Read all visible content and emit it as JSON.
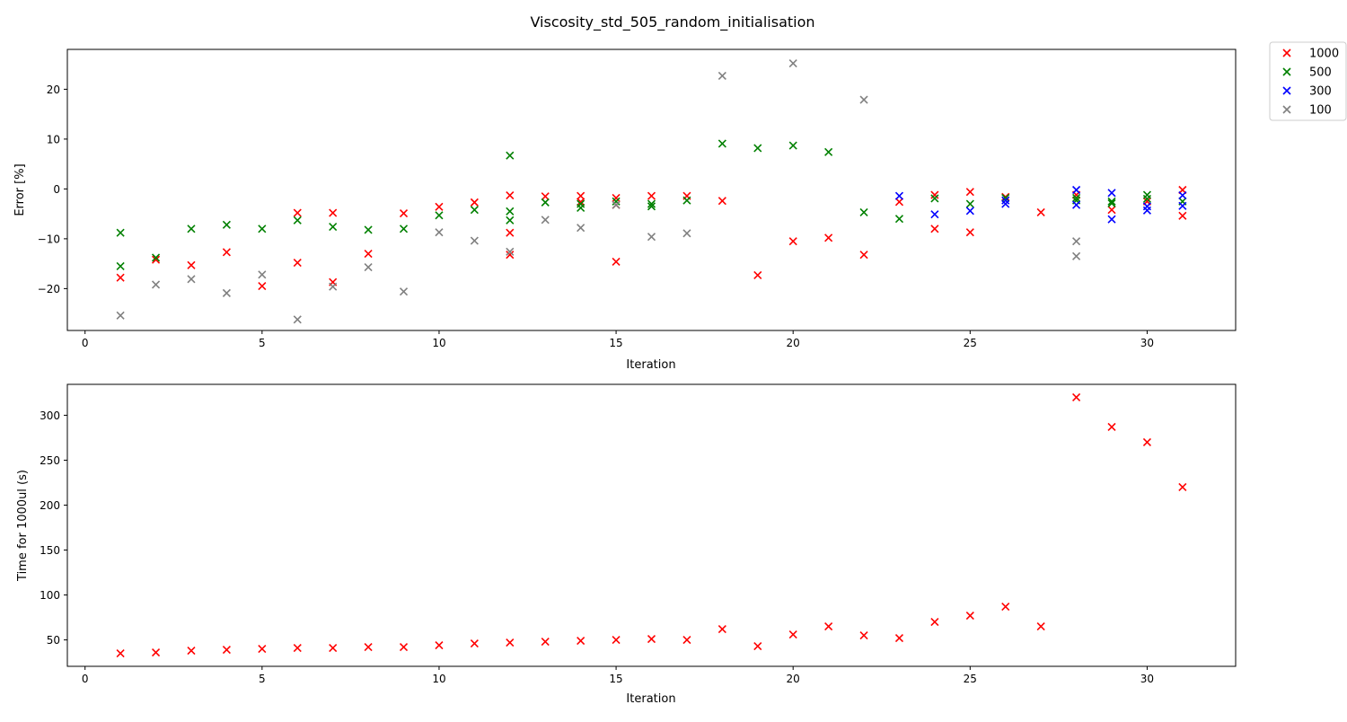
{
  "figure": {
    "title": "Viscosity_std_505_random_initialisation"
  },
  "chart_data": [
    {
      "type": "scatter",
      "title": "",
      "xlabel": "Iteration",
      "ylabel": "Error [%]",
      "xlim": [
        -0.5,
        32.5
      ],
      "ylim": [
        -28.4,
        28.0
      ],
      "xticks": [
        0,
        5,
        10,
        15,
        20,
        25,
        30
      ],
      "yticks": [
        -20,
        -10,
        0,
        10,
        20
      ],
      "grid": false,
      "legend": "outside-top-right",
      "series": [
        {
          "name": "1000",
          "color": "#ff0000",
          "marker": "x",
          "points": [
            [
              1,
              -17.8
            ],
            [
              2,
              -14.2
            ],
            [
              3,
              -15.3
            ],
            [
              4,
              -12.7
            ],
            [
              5,
              -19.5
            ],
            [
              6,
              -4.8
            ],
            [
              6,
              -14.8
            ],
            [
              7,
              -4.8
            ],
            [
              7,
              -18.7
            ],
            [
              8,
              -13.0
            ],
            [
              9,
              -4.9
            ],
            [
              10,
              -3.6
            ],
            [
              11,
              -2.7
            ],
            [
              12,
              -1.3
            ],
            [
              12,
              -8.8
            ],
            [
              12,
              -13.2
            ],
            [
              13,
              -1.5
            ],
            [
              14,
              -1.4
            ],
            [
              14,
              -2.6
            ],
            [
              15,
              -1.8
            ],
            [
              15,
              -3.2
            ],
            [
              15,
              -14.6
            ],
            [
              16,
              -1.4
            ],
            [
              17,
              -1.4
            ],
            [
              18,
              -2.4
            ],
            [
              19,
              -17.3
            ],
            [
              20,
              -10.5
            ],
            [
              21,
              -9.8
            ],
            [
              22,
              -13.2
            ],
            [
              23,
              -2.6
            ],
            [
              24,
              -1.2
            ],
            [
              24,
              -8.0
            ],
            [
              25,
              -0.6
            ],
            [
              25,
              -8.7
            ],
            [
              26,
              -1.6
            ],
            [
              27,
              -4.7
            ],
            [
              28,
              -1.2
            ],
            [
              29,
              -4.2
            ],
            [
              30,
              -2.5
            ],
            [
              31,
              -0.2
            ],
            [
              31,
              -5.4
            ]
          ]
        },
        {
          "name": "500",
          "color": "#008000",
          "marker": "x",
          "points": [
            [
              1,
              -8.8
            ],
            [
              1,
              -15.5
            ],
            [
              2,
              -13.8
            ],
            [
              3,
              -8.0
            ],
            [
              4,
              -7.2
            ],
            [
              5,
              -8.0
            ],
            [
              6,
              -6.3
            ],
            [
              7,
              -7.6
            ],
            [
              8,
              -8.2
            ],
            [
              9,
              -8.0
            ],
            [
              10,
              -5.3
            ],
            [
              11,
              -4.2
            ],
            [
              12,
              6.7
            ],
            [
              12,
              -4.5
            ],
            [
              12,
              -6.3
            ],
            [
              13,
              -2.7
            ],
            [
              14,
              -3.0
            ],
            [
              14,
              -3.8
            ],
            [
              15,
              -2.5
            ],
            [
              16,
              -3.0
            ],
            [
              16,
              -3.5
            ],
            [
              17,
              -2.3
            ],
            [
              18,
              9.1
            ],
            [
              19,
              8.2
            ],
            [
              20,
              8.7
            ],
            [
              21,
              7.4
            ],
            [
              22,
              -4.7
            ],
            [
              23,
              -6.0
            ],
            [
              24,
              -1.9
            ],
            [
              25,
              -3.0
            ],
            [
              26,
              -1.8
            ],
            [
              28,
              -1.8
            ],
            [
              28,
              -2.3
            ],
            [
              29,
              -2.5
            ],
            [
              29,
              -2.9
            ],
            [
              30,
              -1.2
            ],
            [
              30,
              -2.0
            ],
            [
              31,
              -2.5
            ]
          ]
        },
        {
          "name": "300",
          "color": "#0000ff",
          "marker": "x",
          "points": [
            [
              23,
              -1.4
            ],
            [
              24,
              -5.1
            ],
            [
              25,
              -4.4
            ],
            [
              26,
              -2.3
            ],
            [
              26,
              -3.0
            ],
            [
              28,
              -0.2
            ],
            [
              28,
              -3.2
            ],
            [
              29,
              -0.8
            ],
            [
              29,
              -6.1
            ],
            [
              30,
              -3.5
            ],
            [
              30,
              -4.3
            ],
            [
              31,
              -1.3
            ],
            [
              31,
              -3.4
            ]
          ]
        },
        {
          "name": "100",
          "color": "#808080",
          "marker": "x",
          "points": [
            [
              1,
              -25.4
            ],
            [
              2,
              -19.2
            ],
            [
              3,
              -18.1
            ],
            [
              4,
              -20.9
            ],
            [
              5,
              -17.2
            ],
            [
              6,
              -26.2
            ],
            [
              7,
              -19.6
            ],
            [
              8,
              -15.7
            ],
            [
              9,
              -20.6
            ],
            [
              10,
              -8.7
            ],
            [
              11,
              -10.4
            ],
            [
              12,
              -12.6
            ],
            [
              13,
              -6.2
            ],
            [
              14,
              -7.8
            ],
            [
              15,
              -3.2
            ],
            [
              16,
              -9.6
            ],
            [
              17,
              -8.9
            ],
            [
              18,
              22.7
            ],
            [
              20,
              25.2
            ],
            [
              22,
              17.9
            ],
            [
              28,
              -10.5
            ],
            [
              28,
              -13.5
            ]
          ]
        }
      ]
    },
    {
      "type": "scatter",
      "title": "",
      "xlabel": "Iteration",
      "ylabel": "Time for 1000ul (s)",
      "xlim": [
        -0.5,
        32.5
      ],
      "ylim": [
        20.6,
        334.4
      ],
      "xticks": [
        0,
        5,
        10,
        15,
        20,
        25,
        30
      ],
      "yticks": [
        50,
        100,
        150,
        200,
        250,
        300
      ],
      "grid": false,
      "series": [
        {
          "name": "",
          "color": "#ff0000",
          "marker": "x",
          "points": [
            [
              1,
              35
            ],
            [
              2,
              36
            ],
            [
              3,
              38
            ],
            [
              4,
              39
            ],
            [
              5,
              40
            ],
            [
              6,
              41
            ],
            [
              7,
              41
            ],
            [
              8,
              42
            ],
            [
              9,
              42
            ],
            [
              10,
              44
            ],
            [
              11,
              46
            ],
            [
              12,
              47
            ],
            [
              13,
              48
            ],
            [
              14,
              49
            ],
            [
              15,
              50
            ],
            [
              16,
              51
            ],
            [
              17,
              50
            ],
            [
              18,
              62
            ],
            [
              19,
              43
            ],
            [
              20,
              56
            ],
            [
              21,
              65
            ],
            [
              22,
              55
            ],
            [
              23,
              52
            ],
            [
              24,
              70
            ],
            [
              25,
              77
            ],
            [
              26,
              87
            ],
            [
              27,
              65
            ],
            [
              28,
              320
            ],
            [
              29,
              287
            ],
            [
              30,
              270
            ],
            [
              31,
              220
            ]
          ]
        }
      ]
    }
  ]
}
